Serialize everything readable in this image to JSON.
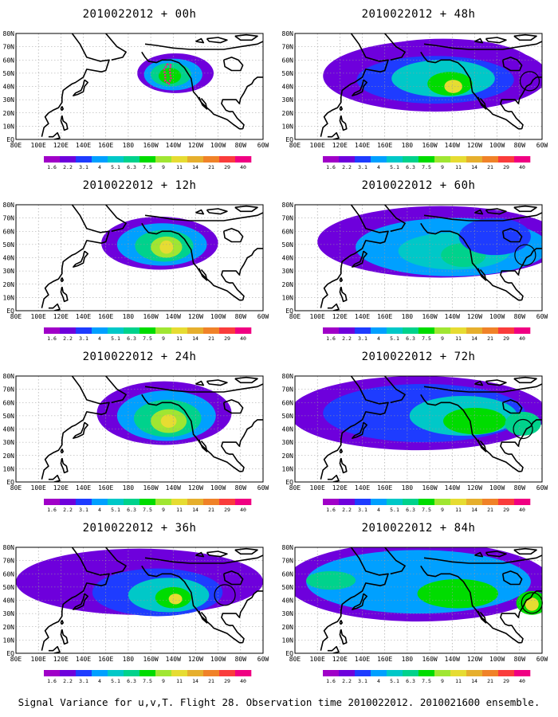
{
  "panels": [
    {
      "title": "2010022012 + 00h"
    },
    {
      "title": "2010022012 + 48h"
    },
    {
      "title": "2010022012 + 12h"
    },
    {
      "title": "2010022012 + 60h"
    },
    {
      "title": "2010022012 + 24h"
    },
    {
      "title": "2010022012 + 72h"
    },
    {
      "title": "2010022012 + 36h"
    },
    {
      "title": "2010022012 + 84h"
    }
  ],
  "axes": {
    "lat_labels": [
      "80N",
      "70N",
      "60N",
      "50N",
      "40N",
      "30N",
      "20N",
      "10N",
      "EQ"
    ],
    "lon_labels": [
      "80E",
      "100E",
      "120E",
      "140E",
      "160E",
      "180",
      "160W",
      "140W",
      "120W",
      "100W",
      "80W",
      "60W"
    ]
  },
  "colorbar": {
    "labels": [
      "1.6",
      "2.2",
      "3.1",
      "4",
      "5.1",
      "6.3",
      "7.5",
      "9",
      "11",
      "14",
      "21",
      "29",
      "40"
    ],
    "colors": [
      "#a000c8",
      "#6e00dc",
      "#1e3cff",
      "#00a0ff",
      "#00c8c8",
      "#00d28c",
      "#00dc00",
      "#a0e632",
      "#e6dc32",
      "#e6af2d",
      "#f08228",
      "#fa3c3c",
      "#f00082"
    ]
  },
  "caption": "Signal Variance for u,v,T. Flight 28. Observation time 2010022012. 2010021600 ensemble."
}
